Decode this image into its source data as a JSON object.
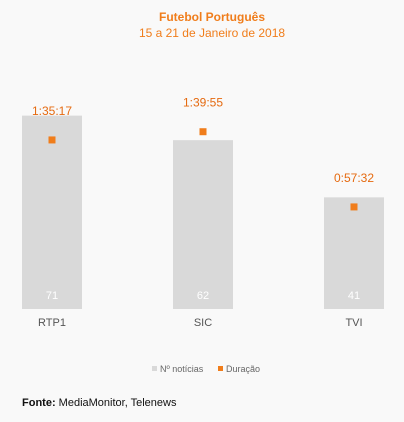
{
  "chart_data": {
    "type": "bar",
    "title": "Futebol Português",
    "subtitle": "15 a 21 de Janeiro de 2018",
    "categories": [
      "RTP1",
      "SIC",
      "TVI"
    ],
    "series": [
      {
        "name": "Nº notícias",
        "type": "bar",
        "values": [
          71,
          62,
          41
        ],
        "color": "#d9d9d9"
      },
      {
        "name": "Duração",
        "type": "scatter",
        "values_seconds": [
          5717,
          5995,
          3452
        ],
        "labels": [
          "1:35:17",
          "1:39:55",
          "0:57:32"
        ],
        "color": "#f07d1b"
      }
    ],
    "ylim_count": [
      0,
      76
    ],
    "ylim_seconds": [
      0,
      7000
    ],
    "legend": "bottom",
    "grid": false
  },
  "source": {
    "label": "Fonte:",
    "text": "MediaMonitor, Telenews"
  }
}
